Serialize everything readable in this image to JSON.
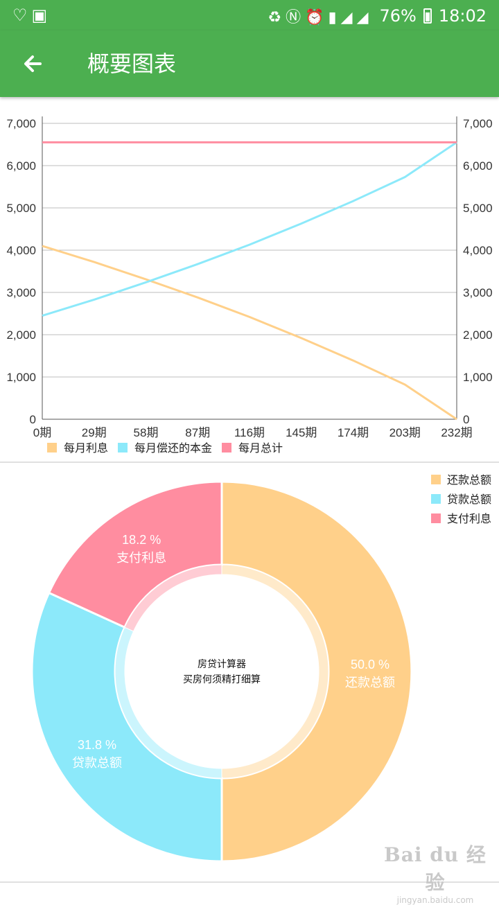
{
  "status_bar": {
    "battery": "76%",
    "time": "18:02"
  },
  "app_bar": {
    "title": "概要图表"
  },
  "chart_data": [
    {
      "type": "line",
      "title": "",
      "x_tick_labels": [
        "0期",
        "29期",
        "58期",
        "87期",
        "116期",
        "145期",
        "174期",
        "203期",
        "232期"
      ],
      "x": [
        0,
        29,
        58,
        87,
        116,
        145,
        174,
        203,
        232
      ],
      "xlim": [
        0,
        232
      ],
      "ylim": [
        0,
        7000
      ],
      "y_ticks": [
        0,
        1000,
        2000,
        3000,
        4000,
        5000,
        6000,
        7000
      ],
      "y_tick_labels": [
        "0",
        "1,000",
        "2,000",
        "3,000",
        "4,000",
        "5,000",
        "6,000",
        "7,000"
      ],
      "grid": true,
      "legend_position": "bottom-left",
      "series": [
        {
          "name": "每月利息",
          "color": "#ffd08a",
          "values": [
            4100,
            3720,
            3310,
            2880,
            2420,
            1920,
            1390,
            820,
            0
          ]
        },
        {
          "name": "每月偿还的本金",
          "color": "#8ce9fa",
          "values": [
            2450,
            2830,
            3240,
            3670,
            4130,
            4630,
            5160,
            5730,
            6550
          ]
        },
        {
          "name": "每月总计",
          "color": "#ff8da0",
          "values": [
            6550,
            6550,
            6550,
            6550,
            6550,
            6550,
            6550,
            6550,
            6550
          ]
        }
      ]
    },
    {
      "type": "pie",
      "title": "",
      "center_text": [
        "房贷计算器",
        "买房何须精打细算"
      ],
      "legend_position": "top-right",
      "slices": [
        {
          "label": "还款总额",
          "value": 50.0,
          "display": "50.0 %",
          "color": "#ffd08a"
        },
        {
          "label": "贷款总额",
          "value": 31.8,
          "display": "31.8 %",
          "color": "#8ce9fa"
        },
        {
          "label": "支付利息",
          "value": 18.2,
          "display": "18.2 %",
          "color": "#ff8da0"
        }
      ]
    }
  ],
  "watermark": {
    "main": "Bai du 经验",
    "sub": "jingyan.baidu.com"
  }
}
